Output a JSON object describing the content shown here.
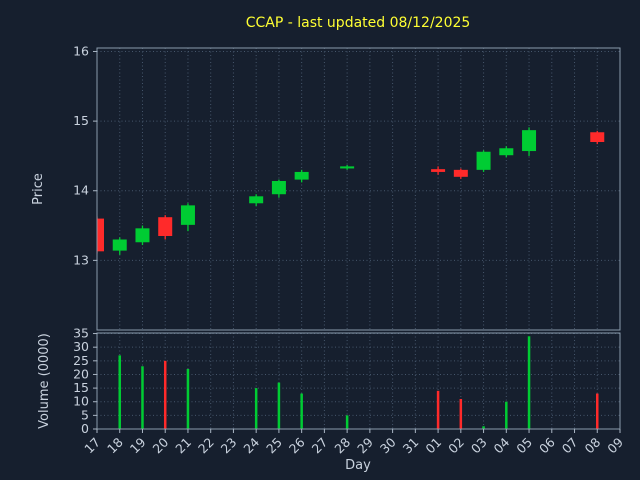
{
  "colors": {
    "background": "#161f2e",
    "panel_border": "#8b9bac",
    "tick_color": "#aab6c4",
    "grid": "#45566b",
    "text": "#c9d2de",
    "title": "#ffff33",
    "up": "#00cc33",
    "down": "#ff2a2a"
  },
  "chart_data": [
    {
      "type": "candlestick",
      "panel": "price",
      "title": "CCAP - last updated 08/12/2025",
      "xlabel": "Day",
      "ylabel": "Price",
      "ylim": [
        12.0,
        16.05
      ],
      "yticks": [
        13,
        14,
        15,
        16
      ],
      "grid": true,
      "legend": "none",
      "categories": [
        "17",
        "18",
        "19",
        "20",
        "21",
        "22",
        "23",
        "24",
        "25",
        "26",
        "27",
        "28",
        "29",
        "30",
        "31",
        "01",
        "02",
        "03",
        "04",
        "05",
        "06",
        "07",
        "08",
        "09"
      ],
      "candles": [
        {
          "day": "17",
          "open": 13.6,
          "high": 13.63,
          "low": 13.1,
          "close": 13.13
        },
        {
          "day": "18",
          "open": 13.14,
          "high": 13.33,
          "low": 13.08,
          "close": 13.3
        },
        {
          "day": "19",
          "open": 13.26,
          "high": 13.5,
          "low": 13.22,
          "close": 13.46
        },
        {
          "day": "20",
          "open": 13.62,
          "high": 13.65,
          "low": 13.3,
          "close": 13.35
        },
        {
          "day": "21",
          "open": 13.51,
          "high": 13.82,
          "low": 13.42,
          "close": 13.79
        },
        {
          "day": "24",
          "open": 13.82,
          "high": 13.95,
          "low": 13.78,
          "close": 13.92
        },
        {
          "day": "25",
          "open": 13.95,
          "high": 14.16,
          "low": 13.9,
          "close": 14.14
        },
        {
          "day": "26",
          "open": 14.16,
          "high": 14.3,
          "low": 14.12,
          "close": 14.27
        },
        {
          "day": "28",
          "open": 14.32,
          "high": 14.37,
          "low": 14.3,
          "close": 14.35
        },
        {
          "day": "01",
          "open": 14.31,
          "high": 14.35,
          "low": 14.23,
          "close": 14.27
        },
        {
          "day": "02",
          "open": 14.3,
          "high": 14.32,
          "low": 14.17,
          "close": 14.2
        },
        {
          "day": "03",
          "open": 14.3,
          "high": 14.58,
          "low": 14.27,
          "close": 14.56
        },
        {
          "day": "04",
          "open": 14.51,
          "high": 14.64,
          "low": 14.48,
          "close": 14.61
        },
        {
          "day": "05",
          "open": 14.57,
          "high": 14.91,
          "low": 14.5,
          "close": 14.87
        },
        {
          "day": "08",
          "open": 14.84,
          "high": 14.86,
          "low": 14.67,
          "close": 14.7
        }
      ]
    },
    {
      "type": "bar",
      "panel": "volume",
      "ylabel": "Volume (0000)",
      "ylim": [
        0,
        35.2
      ],
      "yticks": [
        0,
        5,
        10,
        15,
        20,
        25,
        30,
        35
      ],
      "grid": true,
      "bars": [
        {
          "day": "18",
          "value": 27,
          "direction": "up"
        },
        {
          "day": "19",
          "value": 23,
          "direction": "up"
        },
        {
          "day": "20",
          "value": 25,
          "direction": "down"
        },
        {
          "day": "21",
          "value": 22,
          "direction": "up"
        },
        {
          "day": "24",
          "value": 15,
          "direction": "up"
        },
        {
          "day": "25",
          "value": 17,
          "direction": "up"
        },
        {
          "day": "26",
          "value": 13,
          "direction": "up"
        },
        {
          "day": "28",
          "value": 5,
          "direction": "up"
        },
        {
          "day": "01",
          "value": 14,
          "direction": "down"
        },
        {
          "day": "02",
          "value": 11,
          "direction": "down"
        },
        {
          "day": "03",
          "value": 1,
          "direction": "up"
        },
        {
          "day": "04",
          "value": 10,
          "direction": "up"
        },
        {
          "day": "05",
          "value": 34,
          "direction": "up"
        },
        {
          "day": "08",
          "value": 13,
          "direction": "down"
        }
      ]
    }
  ]
}
